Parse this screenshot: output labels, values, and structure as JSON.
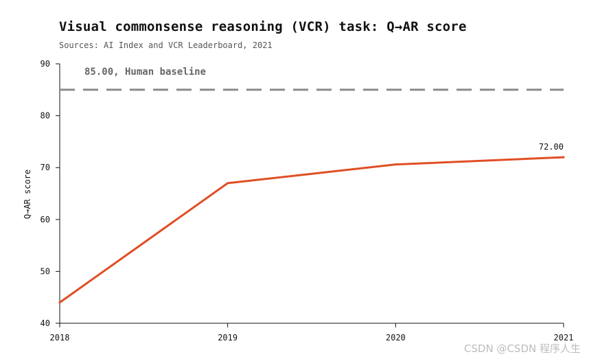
{
  "header": {
    "title": "Visual commonsense reasoning (VCR) task: Q→AR score",
    "subtitle": "Sources: AI Index and VCR Leaderboard, 2021"
  },
  "watermark": "CSDN @CSDN 程序人生",
  "chart_data": {
    "type": "line",
    "x": [
      "2018",
      "2019",
      "2020",
      "2021"
    ],
    "series": [
      {
        "values": [
          44.0,
          67.0,
          70.6,
          72.0
        ],
        "color": "#e04e24"
      }
    ],
    "end_label": "72.00",
    "baseline": {
      "value": 85.0,
      "label": "85.00, Human baseline",
      "color": "#8a8a8a"
    },
    "ylabel": "Q→AR score",
    "xlabel": "",
    "ylim": [
      40,
      90
    ],
    "yticks": [
      40,
      50,
      60,
      70,
      80,
      90
    ],
    "grid": false
  }
}
